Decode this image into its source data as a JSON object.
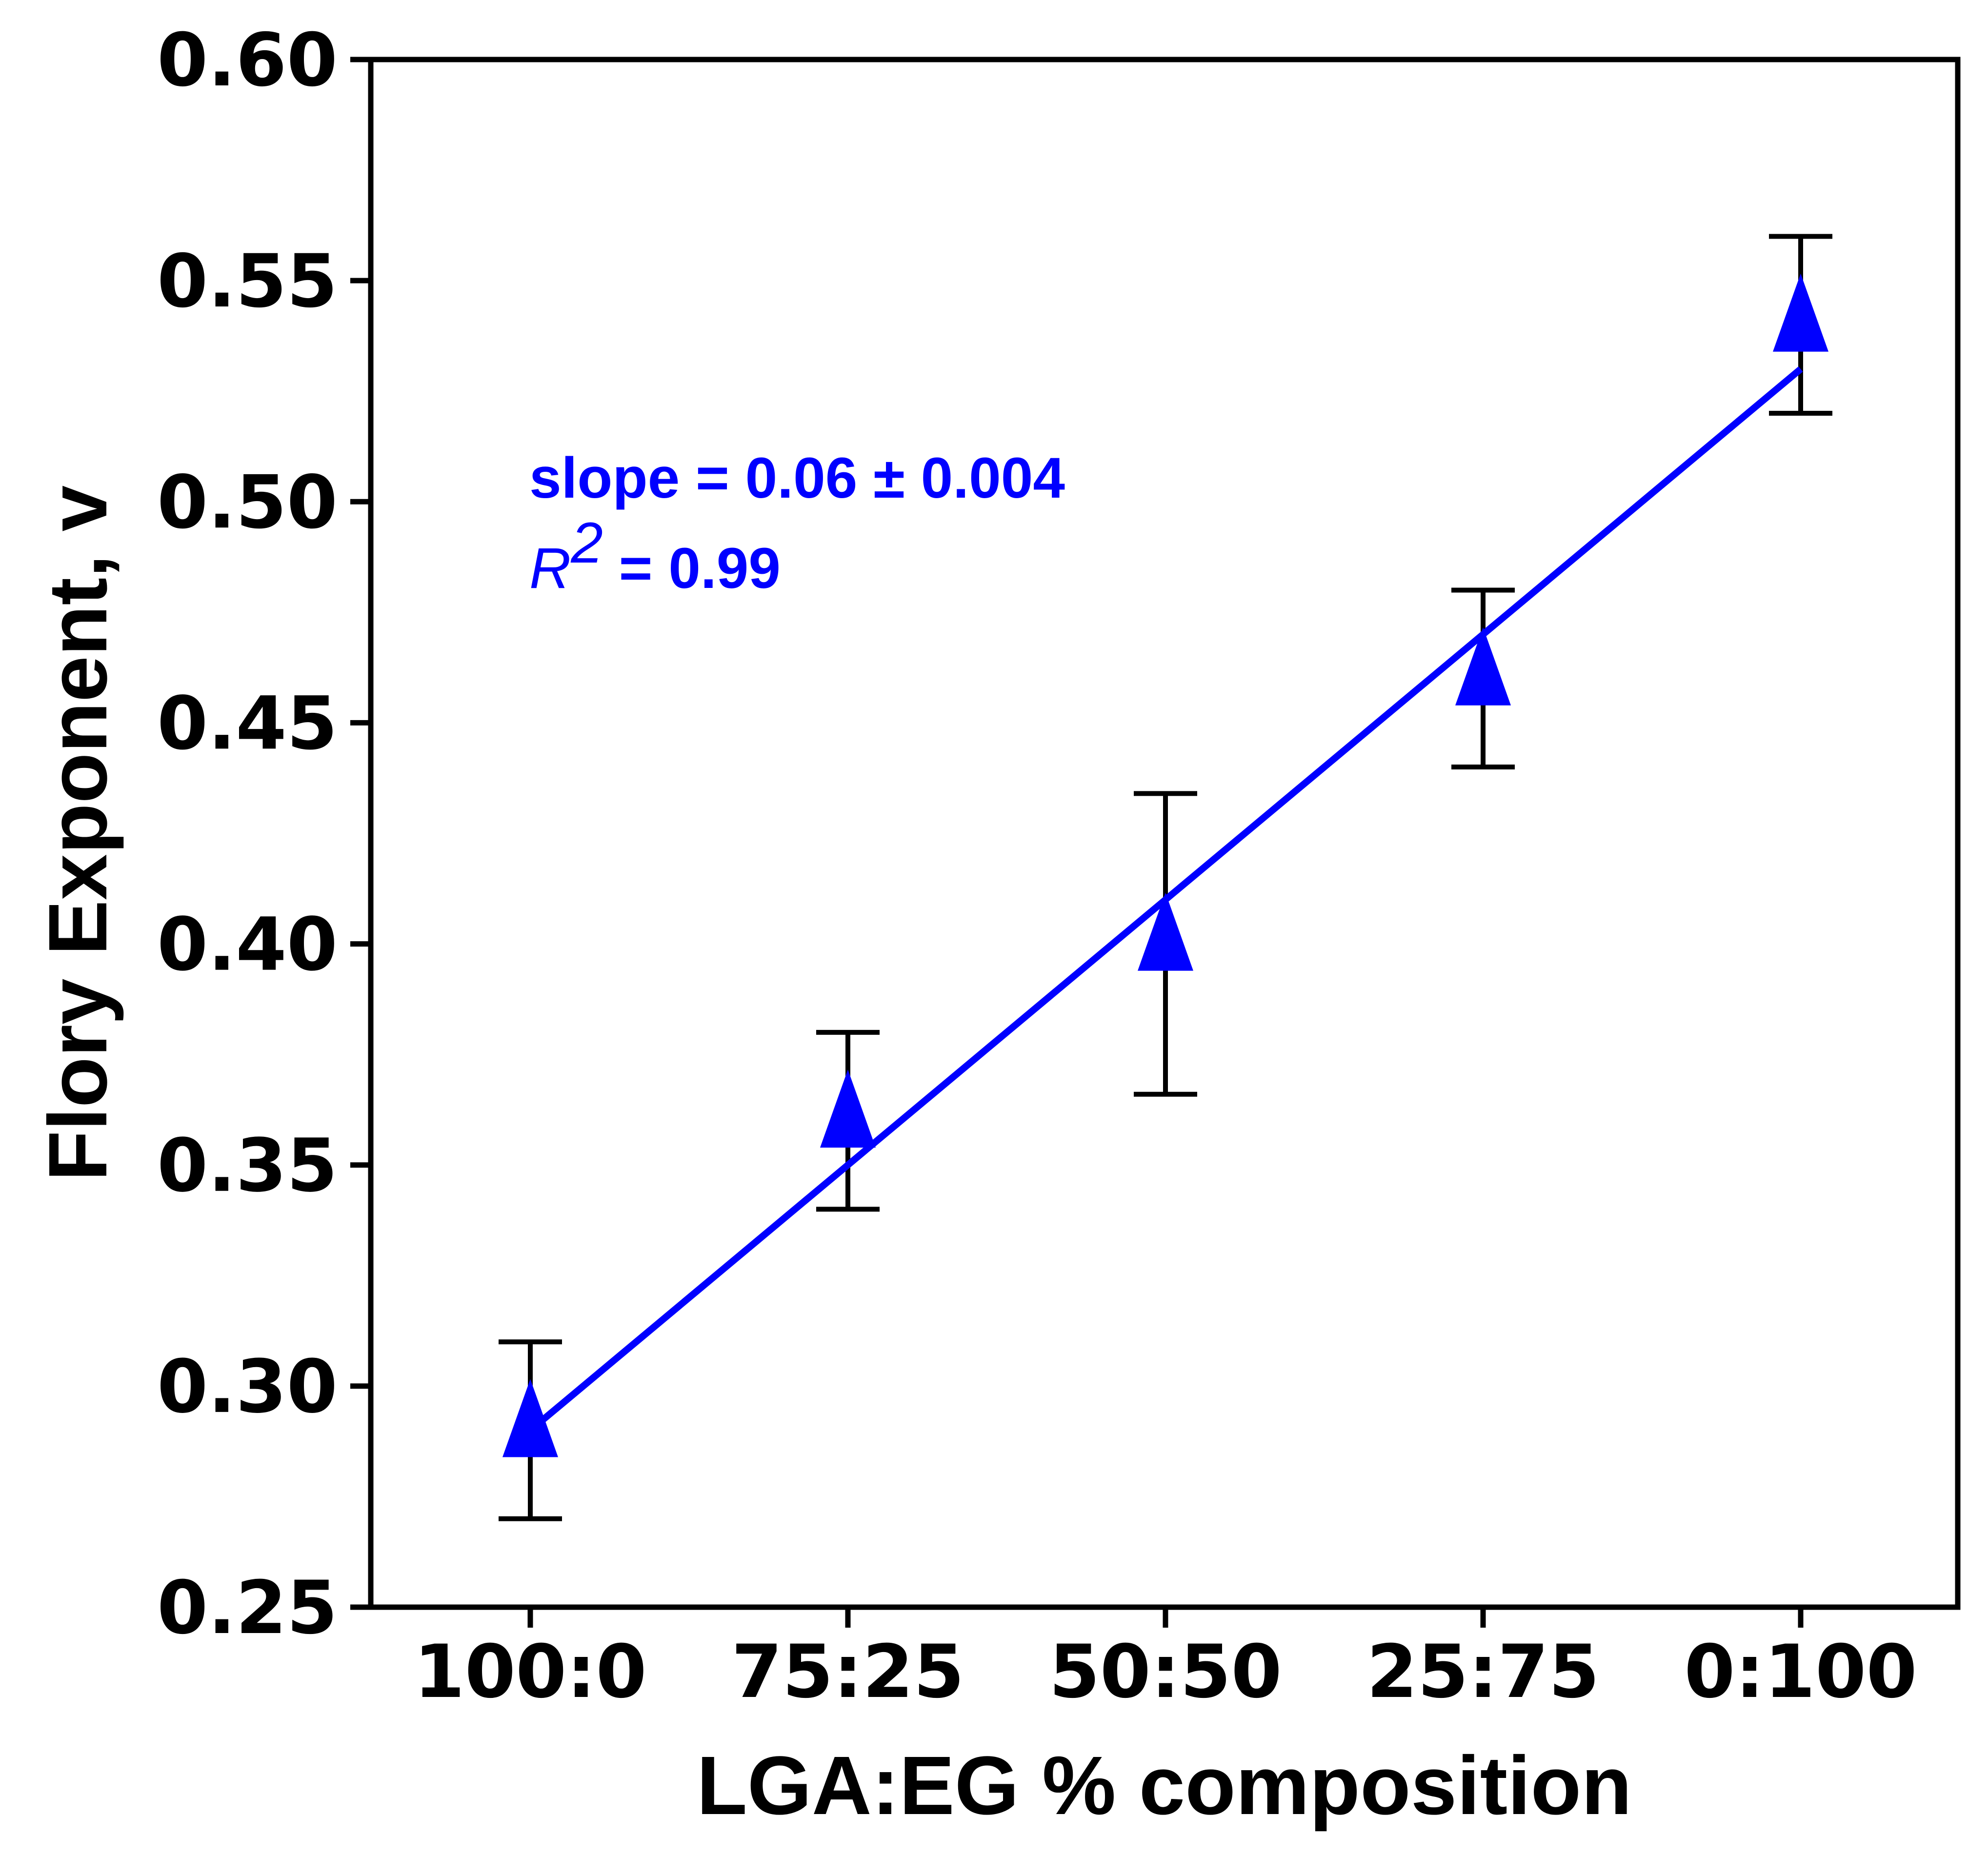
{
  "chart_data": {
    "type": "scatter",
    "title": "",
    "xlabel": "LGA:EG % composition",
    "ylabel": "Flory Exponent, v",
    "categories": [
      "100:0",
      "75:25",
      "50:50",
      "25:75",
      "0:100"
    ],
    "ylim": [
      0.25,
      0.6
    ],
    "yticks": [
      "0.25",
      "0.30",
      "0.35",
      "0.40",
      "0.45",
      "0.50",
      "0.55",
      "0.60"
    ],
    "grid": false,
    "series": [
      {
        "marker": "triangle-up",
        "color": "#0000ff",
        "values": [
          0.29,
          0.36,
          0.4,
          0.46,
          0.54
        ],
        "error_low": [
          0.27,
          0.34,
          0.366,
          0.44,
          0.52
        ],
        "error_high": [
          0.31,
          0.38,
          0.434,
          0.48,
          0.56
        ]
      }
    ],
    "fit_line": {
      "color": "#0000ff",
      "start": {
        "x": "100:0",
        "y": 0.29
      },
      "end": {
        "x": "0:100",
        "y": 0.53
      }
    },
    "annotations": {
      "slope_text": "slope = 0.06 ± 0.004",
      "r2_symbol": "R",
      "r2_exponent": "2",
      "r2_value": " = 0.99",
      "color": "#0000ff"
    }
  }
}
